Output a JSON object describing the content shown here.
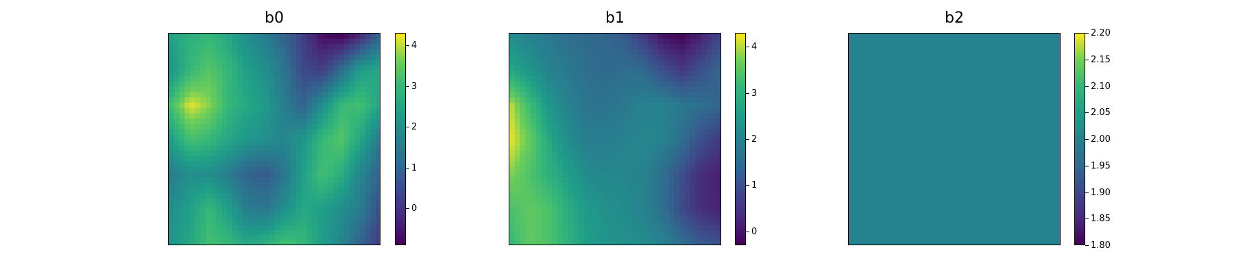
{
  "chart_data": [
    {
      "type": "heatmap",
      "title": "b0",
      "colormap": "viridis",
      "colorbar": {
        "min": -0.9,
        "max": 4.3,
        "ticks": [
          "4",
          "3",
          "2",
          "1",
          "0"
        ],
        "tick_values": [
          4,
          3,
          2,
          1,
          0
        ]
      },
      "grid": [
        [
          2.5,
          2.8,
          3.0,
          2.6,
          2.0,
          1.6,
          1.0,
          0.2,
          -0.6,
          -0.8,
          -0.2,
          1.0
        ],
        [
          2.2,
          3.0,
          3.4,
          3.0,
          2.4,
          2.0,
          1.4,
          0.4,
          0.2,
          1.2,
          2.4,
          2.6
        ],
        [
          3.2,
          4.2,
          3.8,
          3.0,
          2.6,
          2.3,
          1.6,
          1.0,
          2.0,
          3.0,
          3.2,
          2.6
        ],
        [
          2.4,
          3.2,
          3.0,
          2.6,
          2.2,
          2.0,
          1.8,
          2.2,
          3.0,
          3.4,
          2.6,
          1.6
        ],
        [
          1.6,
          2.0,
          2.0,
          1.6,
          1.0,
          0.8,
          1.4,
          2.4,
          3.2,
          2.8,
          1.8,
          1.0
        ],
        [
          2.0,
          2.4,
          3.0,
          2.4,
          1.6,
          1.4,
          2.0,
          2.6,
          2.4,
          2.0,
          1.6,
          0.6
        ],
        [
          2.2,
          2.6,
          3.2,
          3.0,
          2.6,
          2.8,
          3.2,
          3.0,
          2.4,
          1.8,
          1.0,
          0.2
        ]
      ]
    },
    {
      "type": "heatmap",
      "title": "b1",
      "colormap": "viridis",
      "colorbar": {
        "min": -0.3,
        "max": 4.3,
        "ticks": [
          "4",
          "3",
          "2",
          "1",
          "0"
        ],
        "tick_values": [
          4,
          3,
          2,
          1,
          0
        ]
      },
      "grid": [
        [
          2.2,
          2.0,
          1.8,
          1.6,
          1.5,
          1.4,
          1.2,
          0.6,
          0.0,
          -0.2,
          0.2,
          0.8
        ],
        [
          2.8,
          2.4,
          2.0,
          1.8,
          1.6,
          1.5,
          1.6,
          1.5,
          1.0,
          0.6,
          1.0,
          1.4
        ],
        [
          4.0,
          3.2,
          2.4,
          2.0,
          1.7,
          1.7,
          1.8,
          2.0,
          2.0,
          1.8,
          1.6,
          1.4
        ],
        [
          4.2,
          3.6,
          2.8,
          2.2,
          1.9,
          1.9,
          2.0,
          2.1,
          2.0,
          1.6,
          1.0,
          0.6
        ],
        [
          3.8,
          3.4,
          3.0,
          2.6,
          2.2,
          2.1,
          2.1,
          2.0,
          1.6,
          1.0,
          0.4,
          0.2
        ],
        [
          3.4,
          3.6,
          3.4,
          2.9,
          2.5,
          2.3,
          2.2,
          2.0,
          1.6,
          0.9,
          0.4,
          0.2
        ],
        [
          3.2,
          3.6,
          3.4,
          3.0,
          2.6,
          2.4,
          2.3,
          2.2,
          2.0,
          1.6,
          1.2,
          1.0
        ]
      ]
    },
    {
      "type": "heatmap",
      "title": "b2",
      "colormap": "viridis",
      "colorbar": {
        "min": 1.8,
        "max": 2.2,
        "ticks": [
          "2.20",
          "2.15",
          "2.10",
          "2.05",
          "2.00",
          "1.95",
          "1.90",
          "1.85",
          "1.80"
        ],
        "tick_values": [
          2.2,
          2.15,
          2.1,
          2.05,
          2.0,
          1.95,
          1.9,
          1.85,
          1.8
        ]
      },
      "grid": [
        [
          2.0
        ]
      ]
    }
  ]
}
